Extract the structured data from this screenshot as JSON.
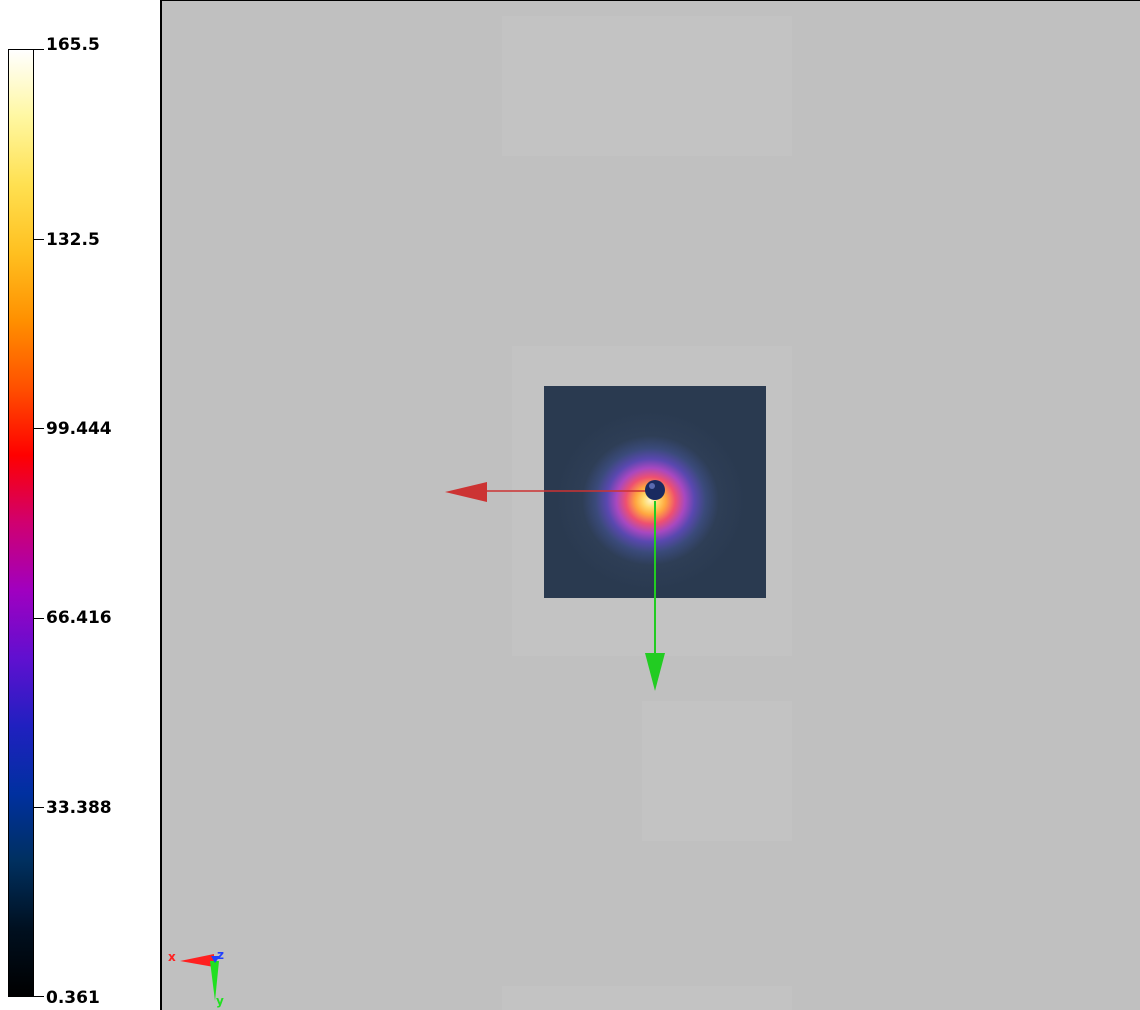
{
  "colorbar": {
    "colormap": "fire",
    "ticks": [
      "165.5",
      "132.5",
      "99.444",
      "66.416",
      "33.388",
      "0.361"
    ],
    "min": 0.361,
    "max": 165.5,
    "gradient_colors": [
      "#ffffff",
      "#fff7a0",
      "#ffe050",
      "#ffc020",
      "#ff9000",
      "#ff5000",
      "#ff0000",
      "#d00070",
      "#a000c0",
      "#6010d0",
      "#2020c0",
      "#0030a0",
      "#003060",
      "#001020",
      "#000000"
    ]
  },
  "viewport": {
    "background": "#c0c0c0",
    "arrows": {
      "x_arrow_color": "#cc3333",
      "y_arrow_color": "#22cc22",
      "center_sphere_color": "#1a2a60"
    },
    "orientation_axes": {
      "x_label": "x",
      "y_label": "y",
      "z_label": "z",
      "x_color": "#ff2020",
      "y_color": "#20e020",
      "z_color": "#2040ff"
    }
  }
}
